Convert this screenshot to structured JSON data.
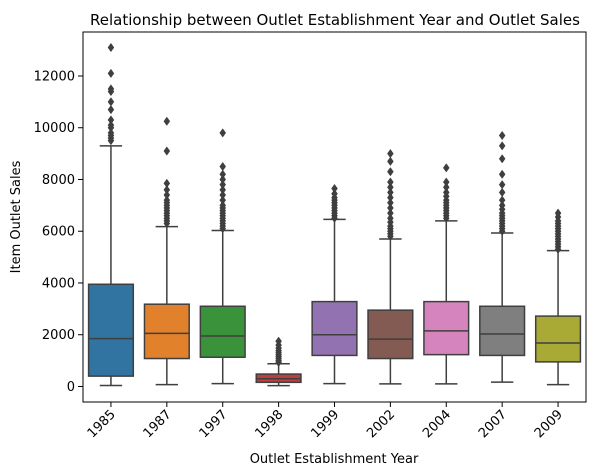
{
  "chart_data": {
    "type": "box",
    "title": "Relationship between Outlet Establishment Year and Outlet Sales",
    "xlabel": "Outlet Establishment Year",
    "ylabel": "Item Outlet Sales",
    "ylim": [
      -600,
      13700
    ],
    "yticks": [
      0,
      2000,
      4000,
      6000,
      8000,
      10000,
      12000
    ],
    "ytick_labels": [
      "0",
      "2000",
      "4000",
      "6000",
      "8000",
      "10000",
      "12000"
    ],
    "grid": false,
    "categories": [
      "1985",
      "1987",
      "1997",
      "1998",
      "1999",
      "2002",
      "2004",
      "2007",
      "2009"
    ],
    "series": [
      {
        "category": "1985",
        "color": "#3274a1",
        "whisker_low": 40,
        "q1": 400,
        "median": 1850,
        "q3": 3950,
        "whisker_high": 9300,
        "outliers": [
          9500,
          9600,
          9700,
          9800,
          10000,
          10100,
          10300,
          10700,
          11000,
          11400,
          11500,
          12100,
          13100
        ]
      },
      {
        "category": "1987",
        "color": "#e1812c",
        "whisker_low": 70,
        "q1": 1080,
        "median": 2050,
        "q3": 3180,
        "whisker_high": 6180,
        "outliers": [
          6300,
          6400,
          6500,
          6600,
          6700,
          6800,
          6900,
          7000,
          7100,
          7200,
          7400,
          7600,
          7850,
          9100,
          10250
        ]
      },
      {
        "category": "1997",
        "color": "#3a923a",
        "whisker_low": 110,
        "q1": 1130,
        "median": 1950,
        "q3": 3100,
        "whisker_high": 6030,
        "outliers": [
          6100,
          6200,
          6300,
          6400,
          6500,
          6600,
          6700,
          6800,
          6900,
          7000,
          7200,
          7400,
          7600,
          7800,
          8000,
          8200,
          8500,
          9800
        ]
      },
      {
        "category": "1998",
        "color": "#c03d3e",
        "whisker_low": 35,
        "q1": 160,
        "median": 300,
        "q3": 480,
        "whisker_high": 880,
        "outliers": [
          930,
          1000,
          1080,
          1150,
          1220,
          1300,
          1380,
          1480,
          1600,
          1750
        ]
      },
      {
        "category": "1999",
        "color": "#9372b2",
        "whisker_low": 110,
        "q1": 1200,
        "median": 2000,
        "q3": 3280,
        "whisker_high": 6460,
        "outliers": [
          6500,
          6600,
          6700,
          6800,
          6900,
          7000,
          7100,
          7200,
          7300,
          7450,
          7650
        ]
      },
      {
        "category": "2002",
        "color": "#845b53",
        "whisker_low": 100,
        "q1": 1080,
        "median": 1830,
        "q3": 2950,
        "whisker_high": 5700,
        "outliers": [
          5800,
          5900,
          6000,
          6100,
          6200,
          6350,
          6500,
          6700,
          6900,
          7100,
          7300,
          7500,
          7700,
          7900,
          8300,
          8700,
          9000
        ]
      },
      {
        "category": "2004",
        "color": "#d684bd",
        "whisker_low": 100,
        "q1": 1230,
        "median": 2150,
        "q3": 3280,
        "whisker_high": 6400,
        "outliers": [
          6500,
          6600,
          6700,
          6800,
          6900,
          7000,
          7100,
          7200,
          7350,
          7500,
          7700,
          7900,
          8450
        ]
      },
      {
        "category": "2007",
        "color": "#7f7f7f",
        "whisker_low": 170,
        "q1": 1200,
        "median": 2030,
        "q3": 3100,
        "whisker_high": 5930,
        "outliers": [
          6000,
          6100,
          6200,
          6300,
          6400,
          6500,
          6600,
          6700,
          6850,
          7000,
          7200,
          7500,
          7800,
          8200,
          8800,
          9300,
          9700
        ]
      },
      {
        "category": "2009",
        "color": "#a9aa35",
        "whisker_low": 70,
        "q1": 950,
        "median": 1680,
        "q3": 2720,
        "whisker_high": 5250,
        "outliers": [
          5300,
          5400,
          5500,
          5600,
          5700,
          5800,
          5900,
          6000,
          6100,
          6200,
          6300,
          6400,
          6550,
          6700
        ]
      }
    ]
  }
}
